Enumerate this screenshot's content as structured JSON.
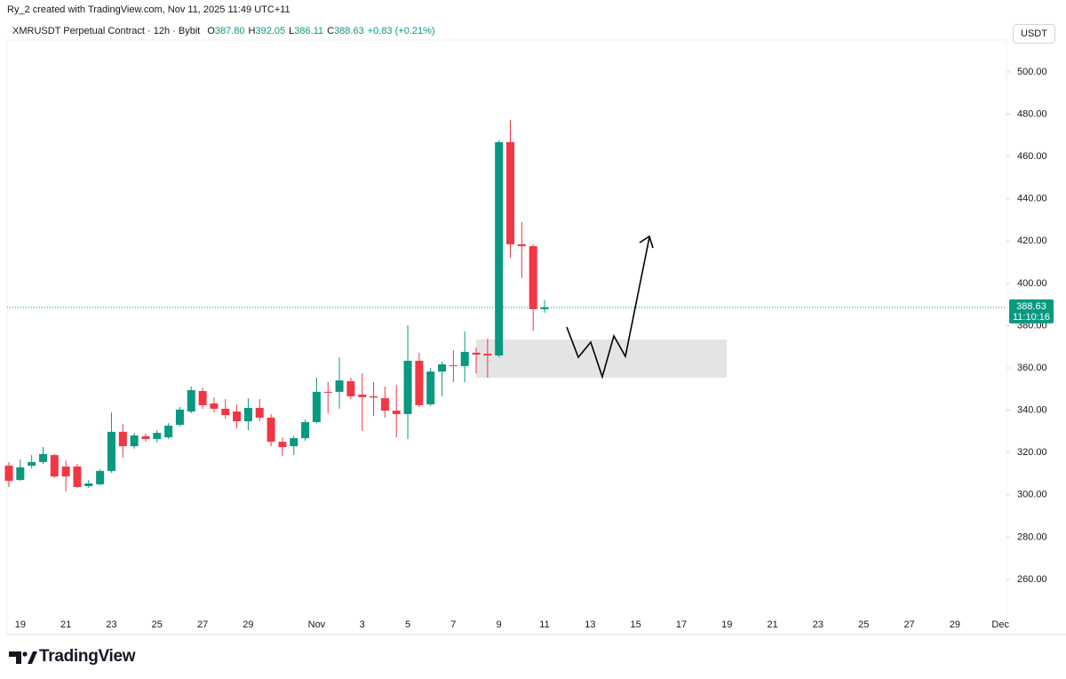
{
  "attribution": "Ry_2 created with TradingView.com, Nov 11, 2025 11:49 UTC+11",
  "brand": "TradingView",
  "chart_data": {
    "type": "candlestick",
    "symbol_line": "XMRUSDT Perpetual Contract · 12h · Bybit",
    "ohlc_legend": [
      {
        "label": "O",
        "value": "387.80"
      },
      {
        "label": "H",
        "value": "392.05"
      },
      {
        "label": "L",
        "value": "386.11"
      },
      {
        "label": "C",
        "value": "388.63"
      }
    ],
    "change": "+0.83 (+0.21%)",
    "currency": "USDT",
    "last_price": 388.63,
    "countdown": "11:10:16",
    "up_color": "#089981",
    "down_color": "#f23645",
    "grid": false,
    "categories": [
      null,
      "19",
      null,
      null,
      null,
      "21",
      null,
      null,
      null,
      "23",
      null,
      null,
      null,
      "25",
      null,
      null,
      null,
      "27",
      null,
      null,
      null,
      "29",
      null,
      null,
      null,
      null,
      null,
      "Nov",
      null,
      null,
      null,
      "3",
      null,
      null,
      null,
      "5",
      null,
      null,
      null,
      "7",
      null,
      null,
      null,
      "9",
      null,
      null,
      null,
      "11",
      null,
      null,
      null,
      "13",
      null,
      null,
      null,
      "15",
      null,
      null,
      null,
      "17",
      null,
      null,
      null,
      "19",
      null,
      null,
      null,
      "21",
      null,
      null,
      null,
      "23",
      null,
      null,
      null,
      "25",
      null,
      null,
      null,
      "27",
      null,
      null,
      null,
      "29",
      null,
      null,
      null,
      "Dec"
    ],
    "open": [
      313.8,
      307,
      313.8,
      315.5,
      318.8,
      313.4,
      313.4,
      304.1,
      305,
      311.3,
      329.8,
      323,
      327.7,
      326.4,
      327.2,
      333.1,
      339.4,
      349.1,
      343.2,
      340.7,
      339.4,
      334.8,
      341.1,
      336.5,
      325.1,
      323,
      326.8,
      334.4,
      348.7,
      348.7,
      353.7,
      347.4,
      346.6,
      345.7,
      339.8,
      338.2,
      363.4,
      342.8,
      358.3,
      361.3,
      360.9,
      367.2,
      366.7,
      365.9,
      466.8,
      418.5,
      417.6,
      387.8,
      null,
      null,
      null,
      null,
      null,
      null,
      null,
      null,
      null,
      null,
      null,
      null,
      null,
      null,
      null,
      null,
      null,
      null,
      null,
      null,
      null,
      null,
      null,
      null,
      null,
      null,
      null,
      null,
      null,
      null,
      null,
      null,
      null,
      null,
      null,
      null,
      null,
      null,
      null,
      null
    ],
    "high": [
      315.5,
      316.7,
      318.8,
      322.6,
      319.3,
      316.3,
      314.6,
      307,
      312.1,
      339,
      333.5,
      329.3,
      328.9,
      330.6,
      333.9,
      341.5,
      351.2,
      350.7,
      346.2,
      345.3,
      342.8,
      345.7,
      345.3,
      338.2,
      327.2,
      328.1,
      335.6,
      355.4,
      353.3,
      365,
      355.4,
      357.5,
      353.3,
      351.2,
      352,
      380.2,
      367.2,
      360,
      363,
      368.4,
      377.3,
      369.7,
      373.9,
      467.6,
      477.3,
      429,
      418.5,
      392.05,
      null,
      null,
      null,
      null,
      null,
      null,
      null,
      null,
      null,
      null,
      null,
      null,
      null,
      null,
      null,
      null,
      null,
      null,
      null,
      null,
      null,
      null,
      null,
      null,
      null,
      null,
      null,
      null,
      null,
      null,
      null,
      null,
      null,
      null,
      null,
      null,
      null,
      null,
      null,
      null
    ],
    "low": [
      303.7,
      306.6,
      312.5,
      314.6,
      307.9,
      301.6,
      303.3,
      303.3,
      304.5,
      310.4,
      317.6,
      321.8,
      325.1,
      324.7,
      326.4,
      332.3,
      338.6,
      340.7,
      339,
      336,
      331.4,
      330.6,
      334.8,
      323,
      318.4,
      318.8,
      325.5,
      333.9,
      338.6,
      340.7,
      345.3,
      330.2,
      337.3,
      336.5,
      327.2,
      326.4,
      341.5,
      341.9,
      346.6,
      353.3,
      353.3,
      357.5,
      355.4,
      365,
      412.1,
      402.5,
      377.7,
      386.11,
      null,
      null,
      null,
      null,
      null,
      null,
      null,
      null,
      null,
      null,
      null,
      null,
      null,
      null,
      null,
      null,
      null,
      null,
      null,
      null,
      null,
      null,
      null,
      null,
      null,
      null,
      null,
      null,
      null,
      null,
      null,
      null,
      null,
      null,
      null,
      null,
      null,
      null,
      null,
      null
    ],
    "close": [
      306.6,
      313,
      315.5,
      319.3,
      308.7,
      308.7,
      303.7,
      305.4,
      311.3,
      329.8,
      323,
      328.1,
      326.4,
      329.3,
      332.7,
      340.3,
      349.5,
      342.4,
      340.7,
      337.7,
      334.8,
      341.1,
      336.5,
      325.1,
      322.6,
      326.8,
      334.4,
      348.7,
      348.5,
      354.1,
      346.6,
      346.2,
      346,
      339.8,
      338.2,
      363.4,
      342.4,
      358.3,
      361.7,
      360.9,
      367.6,
      366.3,
      365.9,
      466.8,
      418.5,
      417.6,
      387.8,
      388.63,
      null,
      null,
      null,
      null,
      null,
      null,
      null,
      null,
      null,
      null,
      null,
      null,
      null,
      null,
      null,
      null,
      null,
      null,
      null,
      null,
      null,
      null,
      null,
      null,
      null,
      null,
      null,
      null,
      null,
      null,
      null,
      null,
      null,
      null,
      null,
      null,
      null,
      null,
      null,
      null
    ],
    "ylim": [
      235.6,
      515.1
    ],
    "yticks": [
      {
        "value": 260,
        "label": "260.00"
      },
      {
        "value": 280,
        "label": "280.00"
      },
      {
        "value": 300,
        "label": "300.00"
      },
      {
        "value": 320,
        "label": "320.00"
      },
      {
        "value": 340,
        "label": "340.00"
      },
      {
        "value": 360,
        "label": "360.00"
      },
      {
        "value": 380,
        "label": "380.00"
      },
      {
        "value": 400,
        "label": "400.00"
      },
      {
        "value": 420,
        "label": "420.00"
      },
      {
        "value": 440,
        "label": "440.00"
      },
      {
        "value": 460,
        "label": "460.00"
      },
      {
        "value": 480,
        "label": "480.00"
      },
      {
        "value": 500,
        "label": "500.00"
      }
    ]
  }
}
